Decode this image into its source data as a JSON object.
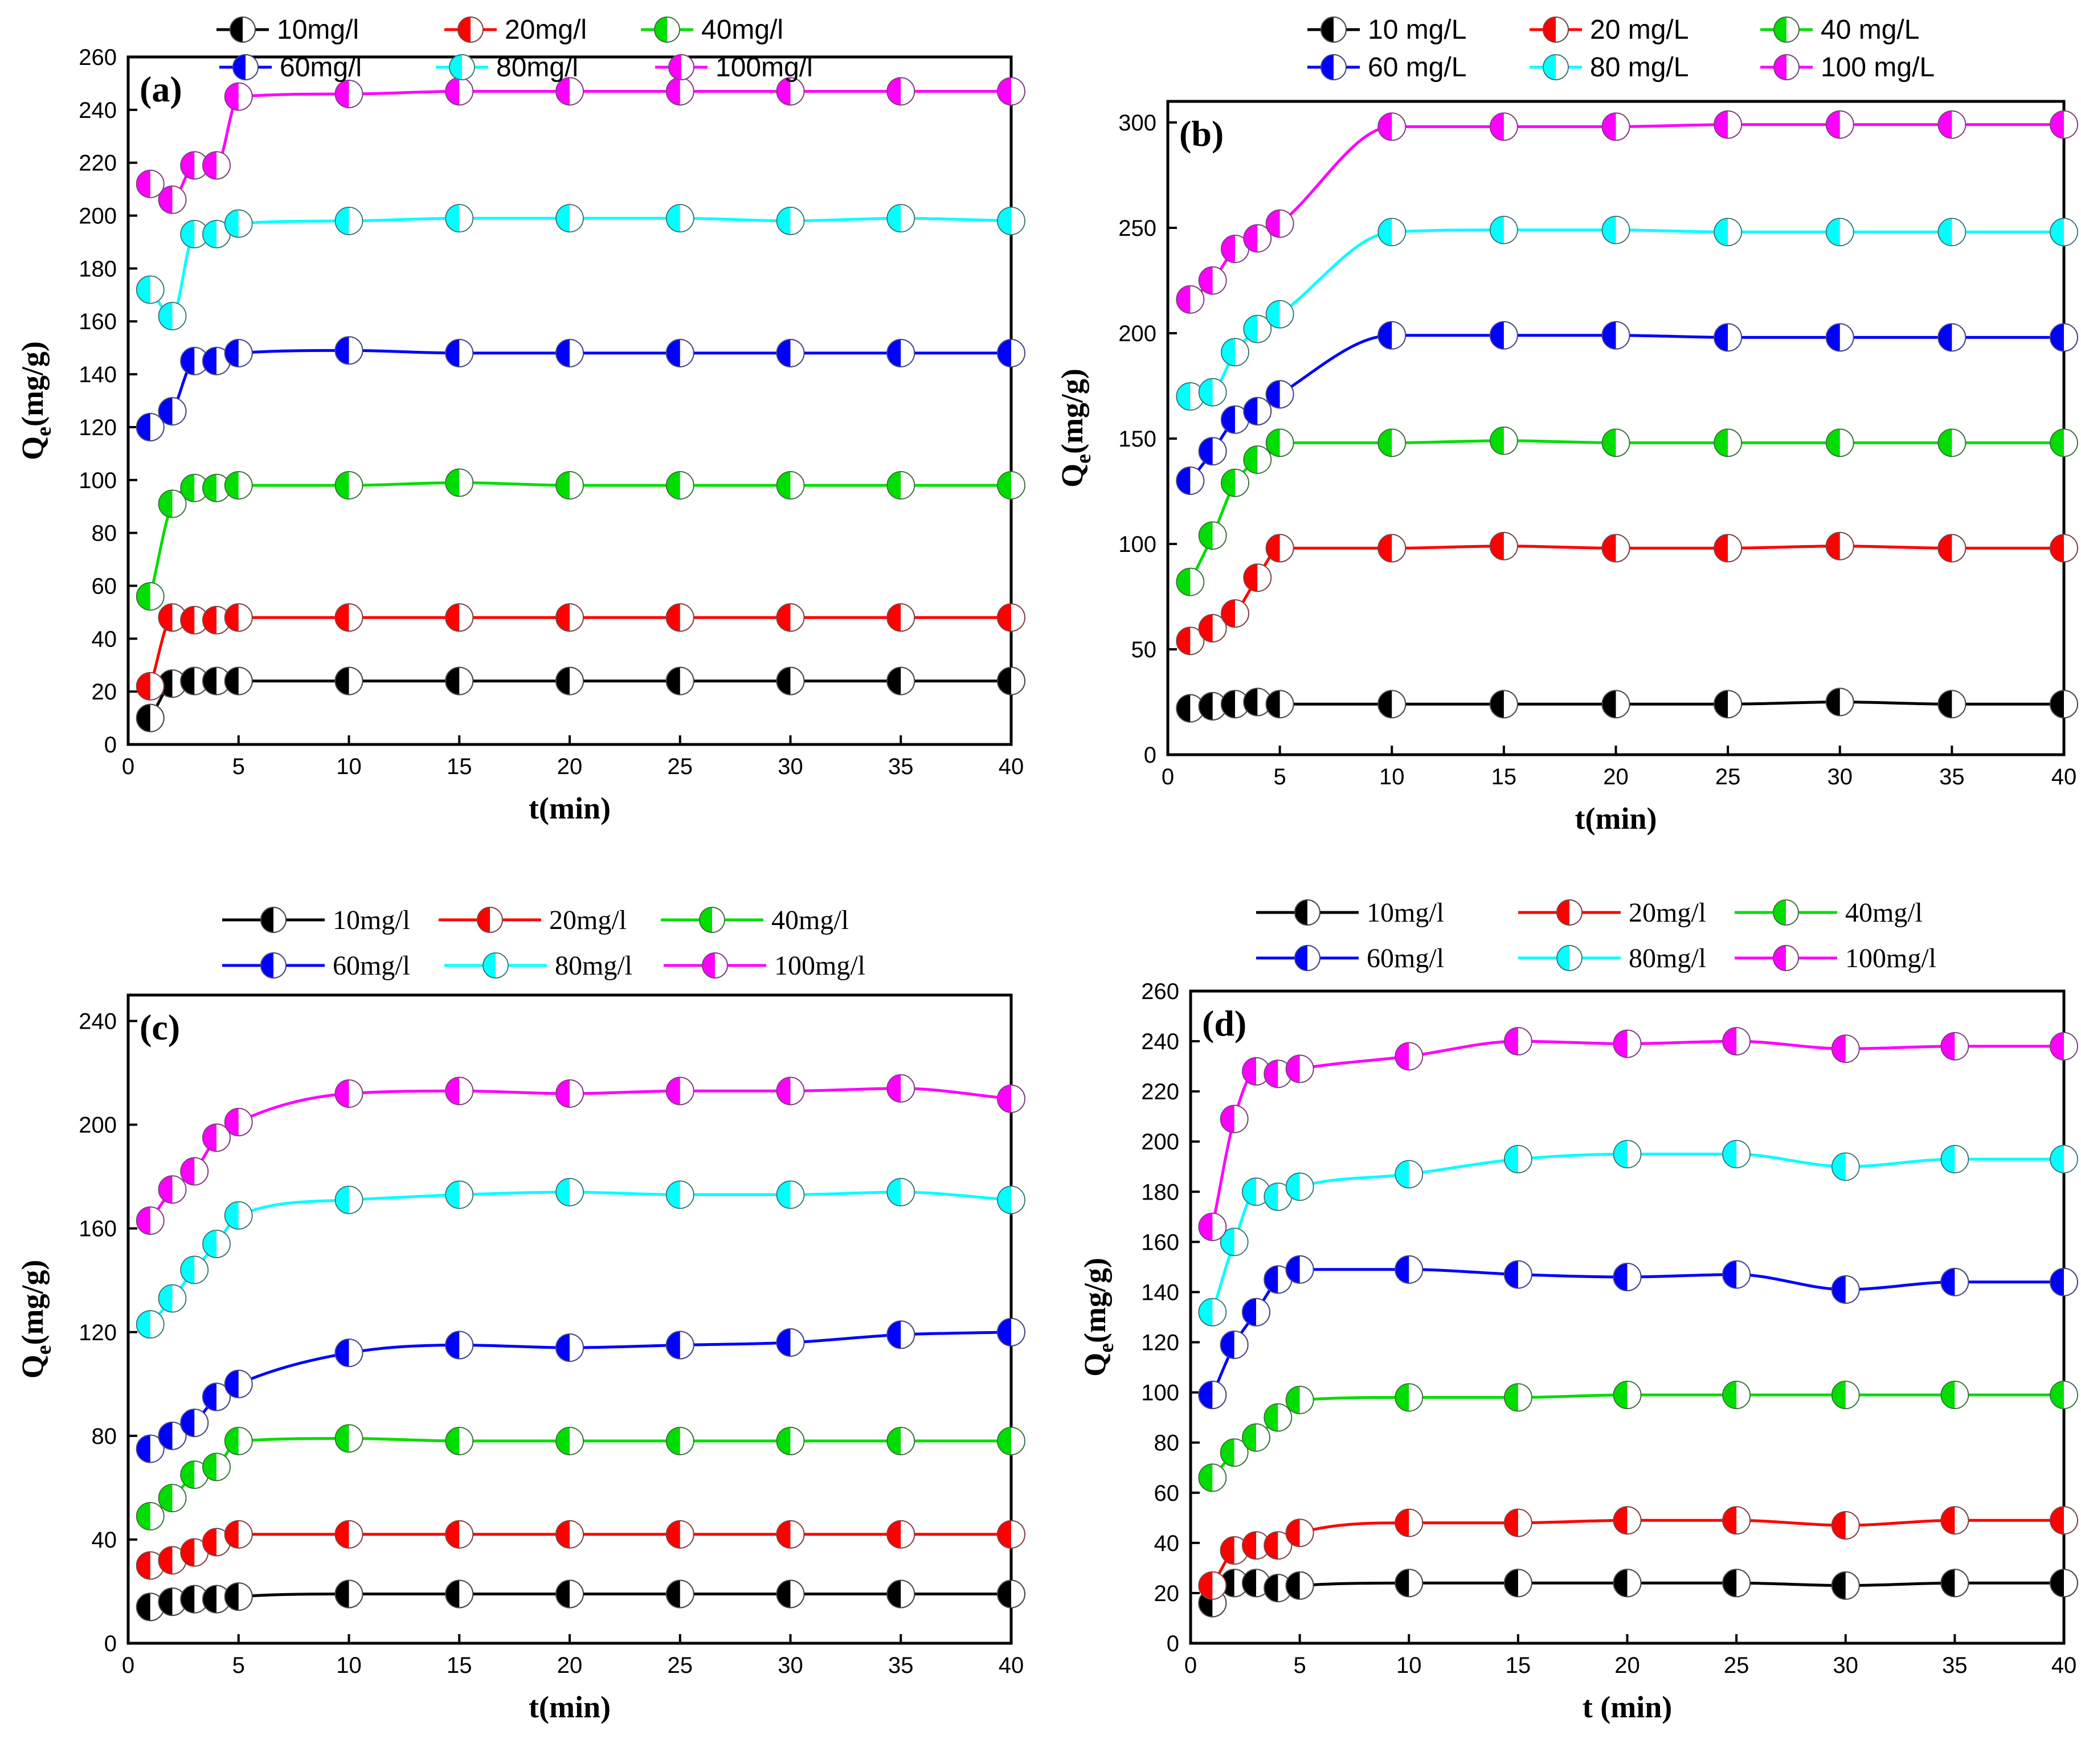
{
  "x_values": [
    1,
    2,
    3,
    4,
    5,
    10,
    15,
    20,
    25,
    30,
    35,
    40
  ],
  "colors": [
    "#000000",
    "#ff0000",
    "#00dd00",
    "#0000ff",
    "#00ffff",
    "#ff00ff"
  ],
  "chart_data": [
    {
      "type": "line",
      "panel_label": "(a)",
      "xlabel": "t(min)",
      "ylabel_main": "Q",
      "ylabel_sub": "e",
      "ylabel_rest": "(mg/g)",
      "xlim": [
        0,
        40
      ],
      "ylim": [
        0,
        260
      ],
      "xticks": [
        0,
        5,
        10,
        15,
        20,
        25,
        30,
        35,
        40
      ],
      "yticks": [
        0,
        20,
        40,
        60,
        80,
        100,
        120,
        140,
        160,
        180,
        200,
        220,
        240,
        260
      ],
      "x": [
        1,
        2,
        3,
        4,
        5,
        10,
        15,
        20,
        25,
        30,
        35,
        40
      ],
      "series": [
        {
          "name": "10mg/l",
          "values": [
            10,
            23,
            24,
            24,
            24,
            24,
            24,
            24,
            24,
            24,
            24,
            24
          ]
        },
        {
          "name": "20mg/l",
          "values": [
            22,
            48,
            47,
            47,
            48,
            48,
            48,
            48,
            48,
            48,
            48,
            48
          ]
        },
        {
          "name": "40mg/l",
          "values": [
            56,
            91,
            97,
            97,
            98,
            98,
            99,
            98,
            98,
            98,
            98,
            98
          ]
        },
        {
          "name": "60mg/l",
          "values": [
            120,
            126,
            145,
            145,
            148,
            149,
            148,
            148,
            148,
            148,
            148,
            148
          ]
        },
        {
          "name": "80mg/l",
          "values": [
            172,
            162,
            193,
            193,
            197,
            198,
            199,
            199,
            199,
            198,
            199,
            198
          ]
        },
        {
          "name": "100mg/l",
          "values": [
            212,
            206,
            219,
            219,
            245,
            246,
            247,
            247,
            247,
            247,
            247,
            247
          ]
        }
      ]
    },
    {
      "type": "line",
      "panel_label": "(b)",
      "xlabel": "t(min)",
      "ylabel_main": "Q",
      "ylabel_sub": "e",
      "ylabel_rest": "(mg/g)",
      "xlim": [
        0,
        40
      ],
      "ylim": [
        0,
        310
      ],
      "xticks": [
        0,
        5,
        10,
        15,
        20,
        25,
        30,
        35,
        40
      ],
      "yticks": [
        0,
        50,
        100,
        150,
        200,
        250,
        300
      ],
      "x": [
        1,
        2,
        3,
        4,
        5,
        10,
        15,
        20,
        25,
        30,
        35,
        40
      ],
      "series": [
        {
          "name": "10 mg/L",
          "values": [
            22,
            23,
            24,
            25,
            24,
            24,
            24,
            24,
            24,
            25,
            24,
            24
          ]
        },
        {
          "name": "20 mg/L",
          "values": [
            54,
            60,
            67,
            84,
            98,
            98,
            99,
            98,
            98,
            99,
            98,
            98
          ]
        },
        {
          "name": "40 mg/L",
          "values": [
            82,
            104,
            129,
            140,
            148,
            148,
            149,
            148,
            148,
            148,
            148,
            148
          ]
        },
        {
          "name": "60 mg/L",
          "values": [
            130,
            144,
            159,
            163,
            171,
            199,
            199,
            199,
            198,
            198,
            198,
            198
          ]
        },
        {
          "name": "80 mg/L",
          "values": [
            170,
            172,
            191,
            202,
            209,
            248,
            249,
            249,
            248,
            248,
            248,
            248
          ]
        },
        {
          "name": "100 mg/L",
          "values": [
            216,
            225,
            240,
            245,
            252,
            298,
            298,
            298,
            299,
            299,
            299,
            299
          ]
        }
      ]
    },
    {
      "type": "line",
      "panel_label": "(c)",
      "xlabel": "t(min)",
      "ylabel_main": "Q",
      "ylabel_sub": "e",
      "ylabel_rest": "(mg/g)",
      "xlim": [
        0,
        40
      ],
      "ylim": [
        0,
        250
      ],
      "xticks": [
        0,
        5,
        10,
        15,
        20,
        25,
        30,
        35,
        40
      ],
      "yticks": [
        0,
        40,
        80,
        120,
        160,
        200,
        240
      ],
      "x": [
        1,
        2,
        3,
        4,
        5,
        10,
        15,
        20,
        25,
        30,
        35,
        40
      ],
      "series": [
        {
          "name": "10mg/l",
          "values": [
            14,
            16,
            17,
            17,
            18,
            19,
            19,
            19,
            19,
            19,
            19,
            19
          ]
        },
        {
          "name": "20mg/l",
          "values": [
            30,
            32,
            35,
            39,
            42,
            42,
            42,
            42,
            42,
            42,
            42,
            42
          ]
        },
        {
          "name": "40mg/l",
          "values": [
            49,
            56,
            65,
            68,
            78,
            79,
            78,
            78,
            78,
            78,
            78,
            78
          ]
        },
        {
          "name": "60mg/l",
          "values": [
            75,
            80,
            85,
            95,
            100,
            112,
            115,
            114,
            115,
            116,
            119,
            120
          ]
        },
        {
          "name": "80mg/l",
          "values": [
            123,
            133,
            144,
            154,
            165,
            171,
            173,
            174,
            173,
            173,
            174,
            171
          ]
        },
        {
          "name": "100mg/l",
          "values": [
            163,
            175,
            182,
            195,
            201,
            212,
            213,
            212,
            213,
            213,
            214,
            210
          ]
        }
      ]
    },
    {
      "type": "line",
      "panel_label": "(d)",
      "xlabel": "t (min)",
      "ylabel_main": "Q",
      "ylabel_sub": "e",
      "ylabel_rest": "(mg/g)",
      "xlim": [
        0,
        40
      ],
      "ylim": [
        0,
        260
      ],
      "xticks": [
        0,
        5,
        10,
        15,
        20,
        25,
        30,
        35,
        40
      ],
      "yticks": [
        0,
        20,
        40,
        60,
        80,
        100,
        120,
        140,
        160,
        180,
        200,
        220,
        240,
        260
      ],
      "x": [
        1,
        2,
        3,
        4,
        5,
        10,
        15,
        20,
        25,
        30,
        35,
        40
      ],
      "series": [
        {
          "name": "10mg/l",
          "values": [
            16,
            24,
            24,
            22,
            23,
            24,
            24,
            24,
            24,
            23,
            24,
            24
          ]
        },
        {
          "name": "20mg/l",
          "values": [
            23,
            37,
            39,
            39,
            44,
            48,
            48,
            49,
            49,
            47,
            49,
            49
          ]
        },
        {
          "name": "40mg/l",
          "values": [
            66,
            76,
            82,
            90,
            97,
            98,
            98,
            99,
            99,
            99,
            99,
            99
          ]
        },
        {
          "name": "60mg/l",
          "values": [
            99,
            119,
            132,
            145,
            149,
            149,
            147,
            146,
            147,
            141,
            144,
            144
          ]
        },
        {
          "name": "80mg/l",
          "values": [
            132,
            160,
            180,
            178,
            182,
            187,
            193,
            195,
            195,
            190,
            193,
            193
          ]
        },
        {
          "name": "100mg/l",
          "values": [
            166,
            209,
            228,
            227,
            229,
            234,
            240,
            239,
            240,
            237,
            238,
            238
          ]
        }
      ]
    }
  ]
}
